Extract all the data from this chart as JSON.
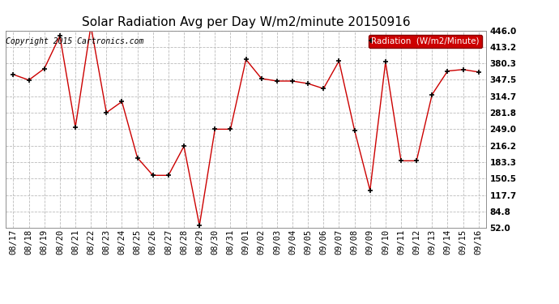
{
  "title": "Solar Radiation Avg per Day W/m2/minute 20150916",
  "copyright": "Copyright 2015 Cartronics.com",
  "legend_label": "Radiation  (W/m2/Minute)",
  "background_color": "#ffffff",
  "plot_bg_color": "#ffffff",
  "grid_color": "#bbbbbb",
  "line_color": "#cc0000",
  "marker_color": "#000000",
  "legend_bg": "#cc0000",
  "legend_text_color": "#ffffff",
  "dates": [
    "08/17",
    "08/18",
    "08/19",
    "08/20",
    "08/21",
    "08/22",
    "08/23",
    "08/24",
    "08/25",
    "08/26",
    "08/27",
    "08/28",
    "08/29",
    "08/30",
    "08/31",
    "09/01",
    "09/02",
    "09/03",
    "09/04",
    "09/05",
    "09/06",
    "09/07",
    "09/08",
    "09/09",
    "09/10",
    "09/11",
    "09/12",
    "09/13",
    "09/14",
    "09/15",
    "09/16"
  ],
  "values": [
    358,
    347,
    370,
    435,
    253,
    455,
    282,
    304,
    192,
    157,
    157,
    215,
    57,
    249,
    249,
    388,
    350,
    345,
    345,
    340,
    330,
    385,
    247,
    127,
    383,
    186,
    186,
    318,
    365,
    368,
    363
  ],
  "ylim_min": 52.0,
  "ylim_max": 446.0,
  "yticks": [
    52.0,
    84.8,
    117.7,
    150.5,
    183.3,
    216.2,
    249.0,
    281.8,
    314.7,
    347.5,
    380.3,
    413.2,
    446.0
  ],
  "title_fontsize": 11,
  "copyright_fontsize": 7,
  "tick_fontsize": 7.5,
  "legend_fontsize": 7.5
}
